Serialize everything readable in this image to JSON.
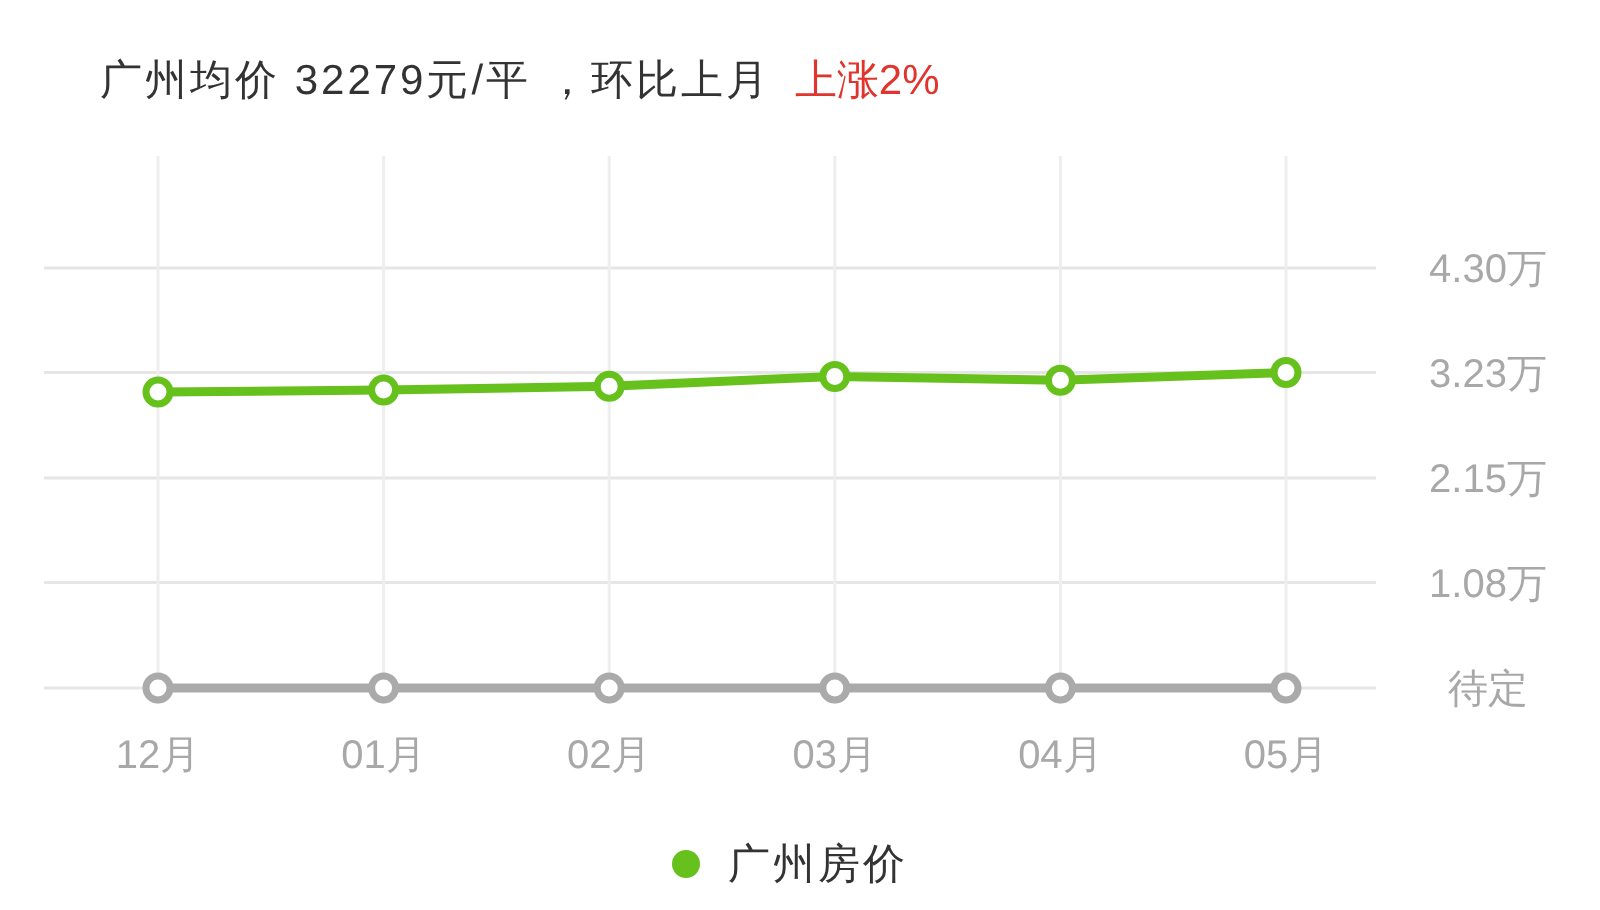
{
  "chart_data": {
    "type": "line",
    "title": "广州均价 32279元/平 ，环比上月",
    "subtitle": "上涨2%",
    "categories": [
      "12月",
      "01月",
      "02月",
      "03月",
      "04月",
      "05月"
    ],
    "series": [
      {
        "name": "广州房价",
        "color": "#66c11c",
        "values": [
          3.03,
          3.05,
          3.09,
          3.19,
          3.15,
          3.23
        ]
      },
      {
        "color": "#aaaaaa",
        "values": [
          0,
          0,
          0,
          0,
          0,
          0
        ]
      }
    ],
    "ylim": [
      0,
      4.3
    ],
    "yticks": [
      {
        "value": 0,
        "label": "待定"
      },
      {
        "value": 1.08,
        "label": "1.08万"
      },
      {
        "value": 2.15,
        "label": "2.15万"
      },
      {
        "value": 3.23,
        "label": "3.23万"
      },
      {
        "value": 4.3,
        "label": "4.30万"
      }
    ],
    "grid": true,
    "legend": "bottom",
    "marker": "circle"
  }
}
